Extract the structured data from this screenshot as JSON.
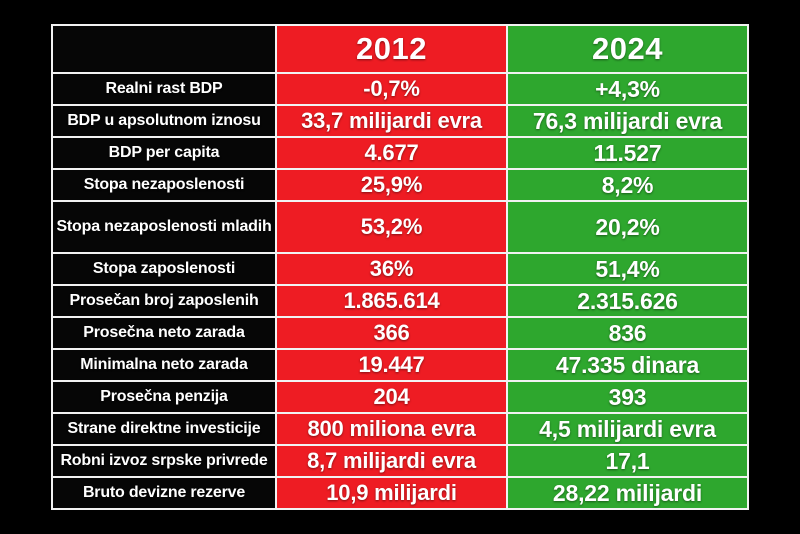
{
  "chart_data": {
    "type": "table",
    "title": "",
    "columns": [
      "",
      "2012",
      "2024"
    ],
    "rows": [
      {
        "label": "Realni rast BDP",
        "y2012": "-0,7%",
        "y2024": "+4,3%"
      },
      {
        "label": "BDP u apsolutnom iznosu",
        "y2012": "33,7 milijardi evra",
        "y2024": "76,3 milijardi evra"
      },
      {
        "label": "BDP per capita",
        "y2012": "4.677",
        "y2024": "11.527"
      },
      {
        "label": "Stopa nezaposlenosti",
        "y2012": "25,9%",
        "y2024": "8,2%"
      },
      {
        "label": "Stopa nezaposlenosti mladih",
        "y2012": "53,2%",
        "y2024": "20,2%"
      },
      {
        "label": "Stopa zaposlenosti",
        "y2012": "36%",
        "y2024": "51,4%"
      },
      {
        "label": "Prosečan broj zaposlenih",
        "y2012": "1.865.614",
        "y2024": "2.315.626"
      },
      {
        "label": "Prosečna neto zarada",
        "y2012": "366",
        "y2024": "836"
      },
      {
        "label": "Minimalna neto zarada",
        "y2012": "19.447",
        "y2024": "47.335 dinara"
      },
      {
        "label": "Prosečna penzija",
        "y2012": "204",
        "y2024": "393"
      },
      {
        "label": "Strane direktne investicije",
        "y2012": "800 miliona evra",
        "y2024": "4,5 milijardi evra"
      },
      {
        "label": "Robni izvoz srpske privrede",
        "y2012": "8,7 milijardi evra",
        "y2024": "17,1"
      },
      {
        "label": "Bruto devizne rezerve",
        "y2012": "10,9 milijardi",
        "y2024": "28,22 milijardi"
      }
    ],
    "layout": {
      "legend_position": "none",
      "grid": "white cell borders on black background"
    },
    "colors": {
      "column_2012": "#EE1C23",
      "column_2024": "#2EA72E",
      "label_column": "#060606",
      "background": "#000000",
      "border": "#F2F2F2",
      "text": "#FFFFFF"
    }
  }
}
